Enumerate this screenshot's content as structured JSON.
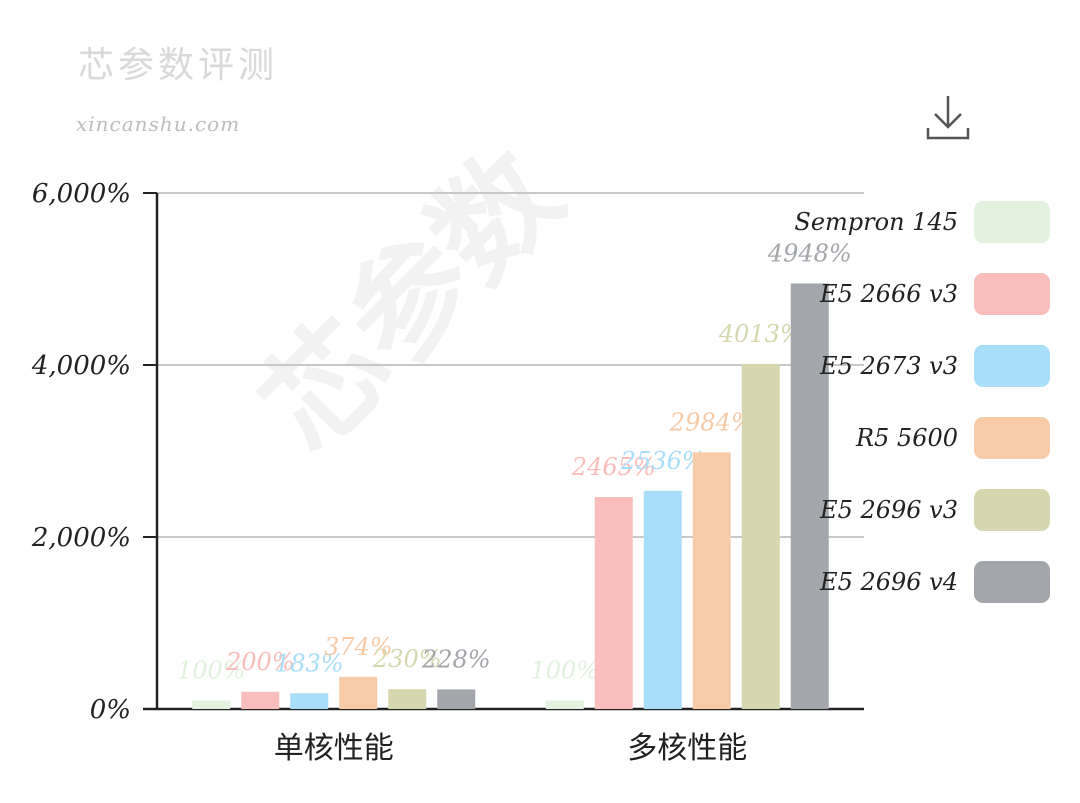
{
  "header": {
    "title": "芯参数评测",
    "url": "xincanshu.com",
    "download_icon": "download-icon"
  },
  "chart_data": {
    "type": "bar",
    "categories": [
      "单核性能",
      "多核性能"
    ],
    "series": [
      {
        "name": "Sempron 145",
        "color": "#e2f2df",
        "values": [
          100,
          100
        ],
        "labels": [
          "100%",
          "100%"
        ]
      },
      {
        "name": "E5 2666 v3",
        "color": "#f9bdbb",
        "values": [
          200,
          2465
        ],
        "labels": [
          "200%",
          "2465%"
        ]
      },
      {
        "name": "E5 2673 v3",
        "color": "#a8def8",
        "values": [
          183,
          2536
        ],
        "labels": [
          "183%",
          "2536%"
        ]
      },
      {
        "name": "R5 5600",
        "color": "#f7cba7",
        "values": [
          374,
          2984
        ],
        "labels": [
          "374%",
          "2984%"
        ]
      },
      {
        "name": "E5 2696 v3",
        "color": "#d6d7af",
        "values": [
          230,
          4013
        ],
        "labels": [
          "230%",
          "4013%"
        ]
      },
      {
        "name": "E5 2696 v4",
        "color": "#a3a7ab",
        "values": [
          228,
          4948
        ],
        "labels": [
          "228%",
          "4948%"
        ]
      }
    ],
    "ylim": [
      0,
      6000
    ],
    "yticks": [
      0,
      2000,
      4000,
      6000
    ],
    "ytick_labels": [
      "0%",
      "2,000%",
      "4,000%",
      "6,000%"
    ],
    "grid": true,
    "legend_position": "right",
    "watermark": "芯参数"
  }
}
